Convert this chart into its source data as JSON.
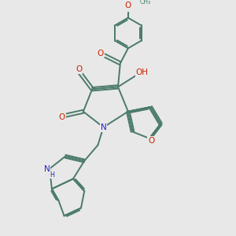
{
  "bg_color": "#e8e8e8",
  "bond_color": "#4a7a6a",
  "bond_width": 1.4,
  "oc": "#cc2200",
  "nc": "#2222cc",
  "fs": 7.5,
  "fs2": 5.8,
  "figsize": [
    3.0,
    3.0
  ],
  "dpi": 100,
  "xlim": [
    0,
    10
  ],
  "ylim": [
    0,
    10
  ]
}
